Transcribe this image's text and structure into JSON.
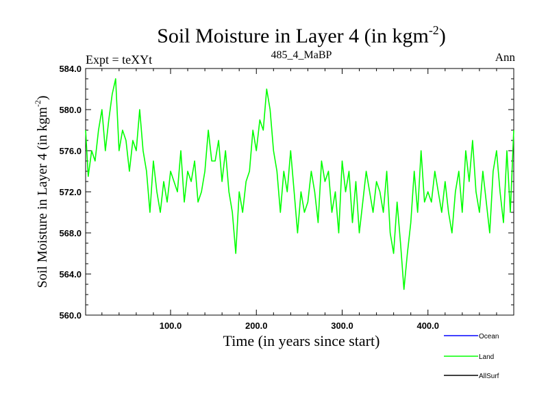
{
  "chart_data": {
    "type": "line",
    "title": "Soil Moisture in Layer 4 (in kgm",
    "title_sup": "-2",
    "title_end": ")",
    "subtitle_left": "Expt = teXYt",
    "subtitle_center": "485_4_MaBP",
    "subtitle_right": "Ann",
    "xlabel": "Time (in years since start)",
    "ylabel": "Soil Moisture in Layer 4 (in kgm",
    "ylabel_sup": "-2",
    "ylabel_end": ")",
    "xlim": [
      1,
      500
    ],
    "ylim": [
      560,
      584
    ],
    "x_ticks": [
      100,
      200,
      300,
      400
    ],
    "x_tick_labels": [
      "100.0",
      "200.0",
      "300.0",
      "400.0"
    ],
    "y_ticks": [
      560,
      564,
      568,
      572,
      576,
      580,
      584
    ],
    "y_tick_labels": [
      "560.0",
      "564.0",
      "568.0",
      "572.0",
      "576.0",
      "580.0",
      "584.0"
    ],
    "grid": false,
    "legend_position": "bottom-right",
    "legend": [
      {
        "name": "Ocean",
        "color": "#0000ff"
      },
      {
        "name": "Land",
        "color": "#00ff00"
      },
      {
        "name": "AllSurf",
        "color": "#000000"
      }
    ],
    "series": [
      {
        "name": "Land",
        "color": "#00ff00",
        "x": [
          1,
          4,
          8,
          12,
          16,
          20,
          24,
          28,
          32,
          36,
          40,
          44,
          48,
          52,
          56,
          60,
          64,
          68,
          72,
          76,
          80,
          84,
          88,
          92,
          96,
          100,
          104,
          108,
          112,
          116,
          120,
          124,
          128,
          132,
          136,
          140,
          144,
          148,
          152,
          156,
          160,
          164,
          168,
          172,
          176,
          180,
          184,
          188,
          192,
          196,
          200,
          204,
          208,
          212,
          216,
          220,
          224,
          228,
          232,
          236,
          240,
          244,
          248,
          252,
          256,
          260,
          264,
          268,
          272,
          276,
          280,
          284,
          288,
          292,
          296,
          300,
          304,
          308,
          312,
          316,
          320,
          324,
          328,
          332,
          336,
          340,
          344,
          348,
          352,
          356,
          360,
          364,
          368,
          372,
          376,
          380,
          384,
          388,
          392,
          396,
          400,
          404,
          408,
          412,
          416,
          420,
          424,
          428,
          432,
          436,
          440,
          444,
          448,
          452,
          456,
          460,
          464,
          468,
          472,
          476,
          480,
          484,
          488,
          492,
          496,
          500
        ],
        "values": [
          578,
          573.5,
          576,
          575,
          578,
          580,
          576,
          579,
          581.5,
          583,
          576,
          578,
          577,
          574,
          577,
          576,
          580,
          576,
          574,
          570,
          575,
          572,
          570,
          573,
          571,
          574,
          573,
          572,
          576,
          571,
          574,
          573,
          575,
          571,
          572,
          574,
          578,
          575,
          575,
          577,
          573,
          576,
          572,
          570,
          566,
          572,
          570,
          573,
          574,
          578,
          576,
          579,
          578,
          582,
          580,
          576,
          574,
          570,
          574,
          572,
          576,
          572,
          568,
          572,
          570,
          571,
          574,
          572,
          569,
          575,
          573,
          574,
          570,
          572,
          568,
          575,
          572,
          574,
          569,
          573,
          568,
          571,
          574,
          572,
          570,
          573,
          572,
          570,
          574,
          568,
          566,
          571,
          567,
          562.5,
          566,
          569,
          574,
          570,
          576,
          571,
          572,
          571,
          574,
          572,
          570,
          573,
          570,
          568,
          572,
          574,
          570,
          576,
          573,
          577,
          572,
          570,
          574,
          571,
          568,
          574,
          576,
          572,
          569,
          576,
          570,
          578
        ]
      }
    ]
  }
}
